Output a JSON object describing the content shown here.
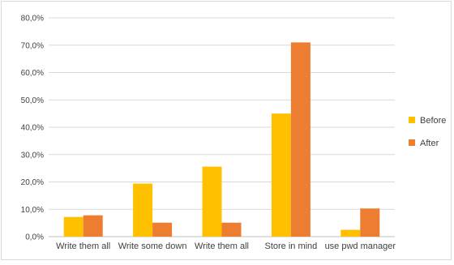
{
  "chart_data": {
    "type": "bar",
    "title": "",
    "xlabel": "",
    "ylabel": "",
    "categories": [
      "Write them all",
      "Write some down",
      "Write them all",
      "Store in mind",
      "use pwd manager"
    ],
    "series": [
      {
        "name": "Before",
        "color": "#FFC000",
        "values": [
          7.2,
          19.4,
          25.6,
          45.0,
          2.5
        ]
      },
      {
        "name": "After",
        "color": "#ED7D31",
        "values": [
          7.8,
          5.1,
          5.1,
          71.0,
          10.3
        ]
      }
    ],
    "ylim": [
      0,
      80
    ],
    "yticks": [
      0,
      10,
      20,
      30,
      40,
      50,
      60,
      70,
      80
    ],
    "ytick_labels": [
      "0,0%",
      "10,0%",
      "20,0%",
      "30,0%",
      "40,0%",
      "50,0%",
      "60,0%",
      "70,0%",
      "80,0%"
    ],
    "grid": true,
    "legend_position": "right"
  }
}
